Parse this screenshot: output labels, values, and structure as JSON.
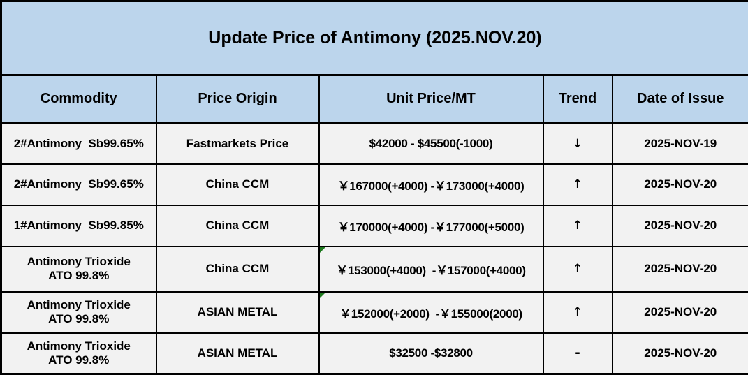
{
  "title": "Update Price of Antimony (2025.NOV.20)",
  "colors": {
    "header_bg": "#BCD5EC",
    "row_bg": "#F2F2F2",
    "border": "#000000",
    "note_marker_green": "#1E7A1E"
  },
  "table": {
    "headers": {
      "commodity": "Commodity",
      "origin": "Price Origin",
      "price": "Unit Price/MT",
      "trend": "Trend",
      "date": "Date of Issue"
    },
    "rows": [
      {
        "commodity": "2#Antimony  Sb99.65%",
        "origin": "Fastmarkets Price",
        "price": "$42000 - $45500(-1000)",
        "trend": "↓",
        "trend_meaning": "down",
        "date": "2025-NOV-19"
      },
      {
        "commodity": "2#Antimony  Sb99.65%",
        "origin": "China CCM",
        "price": "￥167000(+4000) -￥173000(+4000)",
        "trend": "↑",
        "trend_meaning": "up",
        "date": "2025-NOV-20"
      },
      {
        "commodity": "1#Antimony  Sb99.85%",
        "origin": "China CCM",
        "price": "￥170000(+4000) -￥177000(+5000)",
        "trend": "↑",
        "trend_meaning": "up",
        "date": "2025-NOV-20"
      },
      {
        "commodity": "Antimony Trioxide\nATO 99.8%",
        "origin": "China CCM",
        "price": "￥153000(+4000)  -￥157000(+4000)",
        "trend": "↑",
        "trend_meaning": "up",
        "date": "2025-NOV-20"
      },
      {
        "commodity": "Antimony Trioxide\nATO 99.8%",
        "origin": "ASIAN METAL",
        "price": "￥152000(+2000)  -￥155000(2000)",
        "trend": "↑",
        "trend_meaning": "up",
        "date": "2025-NOV-20"
      },
      {
        "commodity": "Antimony Trioxide\nATO 99.8%",
        "origin": "ASIAN METAL",
        "price": "$32500 -$32800",
        "trend": "-",
        "trend_meaning": "unchanged",
        "date": "2025-NOV-20"
      }
    ]
  }
}
